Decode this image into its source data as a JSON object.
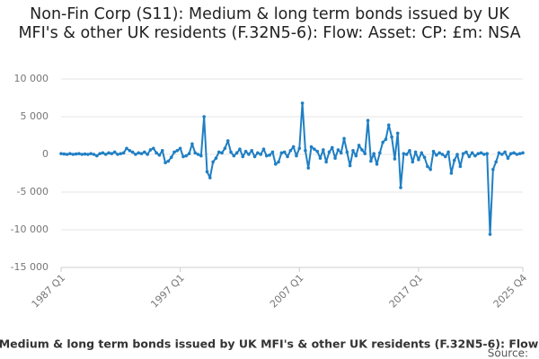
{
  "chart_data": {
    "type": "line",
    "title": "Non-Fin Corp (S11): Medium & long term bonds issued by UK MFI's & other UK residents (F.32N5-6): Flow: Asset: CP: £m: NSA",
    "source": "Source:",
    "categories": [
      "1987 Q1",
      null,
      null,
      null,
      null,
      null,
      null,
      null,
      null,
      null,
      null,
      null,
      null,
      null,
      null,
      null,
      null,
      null,
      null,
      null,
      null,
      null,
      null,
      null,
      null,
      null,
      null,
      null,
      null,
      null,
      null,
      null,
      null,
      null,
      null,
      null,
      null,
      null,
      null,
      null,
      "1997 Q1",
      null,
      null,
      null,
      null,
      null,
      null,
      null,
      null,
      null,
      null,
      null,
      null,
      null,
      null,
      null,
      null,
      null,
      null,
      null,
      null,
      null,
      null,
      null,
      null,
      null,
      null,
      null,
      null,
      null,
      null,
      null,
      null,
      null,
      null,
      null,
      null,
      null,
      null,
      null,
      "2007 Q1",
      null,
      null,
      null,
      null,
      null,
      null,
      null,
      null,
      null,
      null,
      null,
      null,
      null,
      null,
      null,
      null,
      null,
      null,
      null,
      null,
      null,
      null,
      null,
      null,
      null,
      null,
      null,
      null,
      null,
      null,
      null,
      null,
      null,
      null,
      null,
      null,
      null,
      null,
      null,
      "2017 Q1",
      null,
      null,
      null,
      null,
      null,
      null,
      null,
      null,
      null,
      null,
      null,
      null,
      null,
      null,
      null,
      null,
      null,
      null,
      null,
      null,
      null,
      null,
      null,
      null,
      null,
      null,
      null,
      null,
      null,
      null,
      null,
      null,
      null,
      null,
      "2025 Q4"
    ],
    "series": [
      {
        "name": "Non-Fin Corp (S11): Medium & long term bonds issued by UK MFI's & other UK residents (F.32N5-6): Flow: Asset: CP: £m: NSA",
        "color": "#1f7fc4",
        "values": [
          100,
          50,
          0,
          100,
          0,
          50,
          100,
          0,
          50,
          0,
          100,
          0,
          -200,
          100,
          200,
          0,
          200,
          100,
          300,
          0,
          100,
          200,
          800,
          500,
          300,
          0,
          200,
          100,
          300,
          0,
          600,
          800,
          200,
          -100,
          500,
          -1100,
          -900,
          -400,
          300,
          500,
          800,
          -300,
          -200,
          100,
          1400,
          200,
          0,
          -200,
          5000,
          -2300,
          -3100,
          -1000,
          -500,
          300,
          200,
          800,
          1800,
          300,
          -200,
          200,
          700,
          -300,
          400,
          0,
          500,
          -300,
          200,
          0,
          700,
          -200,
          -100,
          300,
          -1300,
          -1000,
          200,
          300,
          -300,
          500,
          1000,
          -200,
          800,
          6800,
          500,
          -1800,
          1000,
          700,
          400,
          -500,
          600,
          -1000,
          300,
          900,
          -500,
          600,
          200,
          2100,
          300,
          -1500,
          500,
          -200,
          1200,
          600,
          100,
          4500,
          -900,
          100,
          -1300,
          200,
          1600,
          2000,
          3900,
          2300,
          -600,
          2800,
          -4400,
          100,
          0,
          500,
          -1000,
          300,
          -700,
          200,
          -400,
          -1600,
          -2000,
          400,
          -100,
          200,
          0,
          -300,
          300,
          -2500,
          -800,
          0,
          -1600,
          100,
          300,
          -300,
          200,
          -200,
          100,
          200,
          0,
          100,
          -10600,
          -2000,
          -1000,
          200,
          0,
          300,
          -500,
          100,
          200,
          0,
          100,
          200
        ]
      }
    ],
    "ylim": [
      -15000,
      10000
    ],
    "yticks": [
      {
        "value": -15000,
        "label": "-15 000"
      },
      {
        "value": -10000,
        "label": "-10 000"
      },
      {
        "value": -5000,
        "label": "-5 000"
      },
      0,
      {
        "value": 5000,
        "label": "5 000"
      },
      {
        "value": 10000,
        "label": "10 000"
      }
    ],
    "grid": true
  }
}
